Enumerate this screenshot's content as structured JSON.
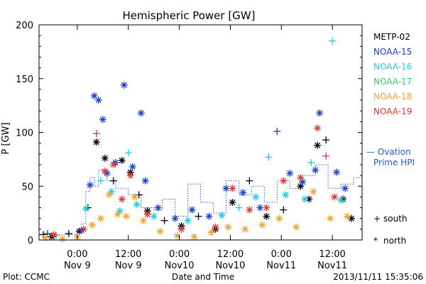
{
  "chart_data": {
    "type": "scatter",
    "title": "Hemispheric Power [GW]",
    "ylabel": "P [GW]",
    "xlabel": "Date and Time",
    "ylim": [
      0,
      200
    ],
    "yticks": [
      0,
      50,
      100,
      150,
      200
    ],
    "xlim": [
      "2013-11-08 15:00",
      "2013-11-11 19:00"
    ],
    "xticks": [
      {
        "time": "2013-11-09 00:00",
        "line1": "0:00",
        "line2": "Nov 9"
      },
      {
        "time": "2013-11-09 12:00",
        "line1": "12:00",
        "line2": "Nov 9"
      },
      {
        "time": "2013-11-10 00:00",
        "line1": "0:00",
        "line2": "Nov10"
      },
      {
        "time": "2013-11-10 12:00",
        "line1": "12:00",
        "line2": "Nov10"
      },
      {
        "time": "2013-11-11 00:00",
        "line1": "0:00",
        "line2": "Nov11"
      },
      {
        "time": "2013-11-11 12:00",
        "line1": "12:00",
        "line2": "Nov11"
      }
    ],
    "series": [
      {
        "name": "METP-02",
        "color": "#000000",
        "points": [
          {
            "t": "2013-11-08 16:00",
            "v": 5,
            "m": "south"
          },
          {
            "t": "2013-11-08 18:00",
            "v": 3,
            "m": "north"
          },
          {
            "t": "2013-11-08 22:00",
            "v": 6,
            "m": "south"
          },
          {
            "t": "2013-11-09 00:30",
            "v": 8,
            "m": "north"
          },
          {
            "t": "2013-11-09 02:30",
            "v": 30,
            "m": "south"
          },
          {
            "t": "2013-11-09 04:30",
            "v": 91,
            "m": "north"
          },
          {
            "t": "2013-11-09 06:30",
            "v": 76,
            "m": "north"
          },
          {
            "t": "2013-11-09 08:30",
            "v": 55,
            "m": "south"
          },
          {
            "t": "2013-11-09 10:30",
            "v": 74,
            "m": "north"
          },
          {
            "t": "2013-11-09 12:30",
            "v": 63,
            "m": "north"
          },
          {
            "t": "2013-11-09 14:30",
            "v": 42,
            "m": "south"
          },
          {
            "t": "2013-11-09 16:30",
            "v": 27,
            "m": "north"
          },
          {
            "t": "2013-11-09 20:30",
            "v": 18,
            "m": "south"
          },
          {
            "t": "2013-11-10 00:30",
            "v": 13,
            "m": "north"
          },
          {
            "t": "2013-11-10 04:30",
            "v": 22,
            "m": "south"
          },
          {
            "t": "2013-11-10 08:30",
            "v": 10,
            "m": "north"
          },
          {
            "t": "2013-11-10 12:30",
            "v": 35,
            "m": "north"
          },
          {
            "t": "2013-11-10 16:30",
            "v": 55,
            "m": "south"
          },
          {
            "t": "2013-11-10 20:30",
            "v": 22,
            "m": "north"
          },
          {
            "t": "2013-11-11 00:30",
            "v": 28,
            "m": "south"
          },
          {
            "t": "2013-11-11 04:30",
            "v": 50,
            "m": "north"
          },
          {
            "t": "2013-11-11 06:30",
            "v": 38,
            "m": "north"
          },
          {
            "t": "2013-11-11 08:30",
            "v": 88,
            "m": "north"
          },
          {
            "t": "2013-11-11 10:30",
            "v": 93,
            "m": "south"
          },
          {
            "t": "2013-11-11 14:30",
            "v": 38,
            "m": "north"
          },
          {
            "t": "2013-11-11 16:30",
            "v": 20,
            "m": "north"
          }
        ]
      },
      {
        "name": "NOAA-15",
        "color": "#1c3fc4",
        "points": [
          {
            "t": "2013-11-08 17:00",
            "v": 6,
            "m": "south"
          },
          {
            "t": "2013-11-09 01:00",
            "v": 9,
            "m": "north"
          },
          {
            "t": "2013-11-09 03:00",
            "v": 51,
            "m": "north"
          },
          {
            "t": "2013-11-09 04:00",
            "v": 134,
            "m": "north"
          },
          {
            "t": "2013-11-09 05:00",
            "v": 130,
            "m": "north"
          },
          {
            "t": "2013-11-09 06:00",
            "v": 112,
            "m": "north"
          },
          {
            "t": "2013-11-09 07:00",
            "v": 62,
            "m": "north"
          },
          {
            "t": "2013-11-09 09:00",
            "v": 72,
            "m": "north"
          },
          {
            "t": "2013-11-09 11:00",
            "v": 144,
            "m": "north"
          },
          {
            "t": "2013-11-09 13:00",
            "v": 68,
            "m": "north"
          },
          {
            "t": "2013-11-09 15:00",
            "v": 118,
            "m": "north"
          },
          {
            "t": "2013-11-09 16:00",
            "v": 55,
            "m": "north"
          },
          {
            "t": "2013-11-09 19:00",
            "v": 30,
            "m": "north"
          },
          {
            "t": "2013-11-09 23:00",
            "v": 20,
            "m": "north"
          },
          {
            "t": "2013-11-10 03:00",
            "v": 28,
            "m": "north"
          },
          {
            "t": "2013-11-10 07:00",
            "v": 22,
            "m": "north"
          },
          {
            "t": "2013-11-10 11:00",
            "v": 48,
            "m": "north"
          },
          {
            "t": "2013-11-10 15:00",
            "v": 44,
            "m": "north"
          },
          {
            "t": "2013-11-10 19:00",
            "v": 30,
            "m": "north"
          },
          {
            "t": "2013-11-10 23:00",
            "v": 101,
            "m": "south"
          },
          {
            "t": "2013-11-11 02:00",
            "v": 62,
            "m": "north"
          },
          {
            "t": "2013-11-11 05:00",
            "v": 54,
            "m": "north"
          },
          {
            "t": "2013-11-11 08:00",
            "v": 65,
            "m": "north"
          },
          {
            "t": "2013-11-11 09:00",
            "v": 118,
            "m": "north"
          },
          {
            "t": "2013-11-11 13:00",
            "v": 63,
            "m": "north"
          },
          {
            "t": "2013-11-11 15:00",
            "v": 48,
            "m": "north"
          }
        ]
      },
      {
        "name": "NOAA-16",
        "color": "#29c8e0",
        "points": [
          {
            "t": "2013-11-08 19:00",
            "v": 4,
            "m": "south"
          },
          {
            "t": "2013-11-09 02:00",
            "v": 29,
            "m": "north"
          },
          {
            "t": "2013-11-09 05:30",
            "v": 55,
            "m": "south"
          },
          {
            "t": "2013-11-09 08:00",
            "v": 45,
            "m": "north"
          },
          {
            "t": "2013-11-09 10:00",
            "v": 27,
            "m": "north"
          },
          {
            "t": "2013-11-09 12:00",
            "v": 81,
            "m": "south"
          },
          {
            "t": "2013-11-09 14:00",
            "v": 33,
            "m": "north"
          },
          {
            "t": "2013-11-09 18:00",
            "v": 22,
            "m": "north"
          },
          {
            "t": "2013-11-10 02:00",
            "v": 18,
            "m": "north"
          },
          {
            "t": "2013-11-10 10:00",
            "v": 23,
            "m": "north"
          },
          {
            "t": "2013-11-10 14:00",
            "v": 30,
            "m": "south"
          },
          {
            "t": "2013-11-10 18:00",
            "v": 40,
            "m": "north"
          },
          {
            "t": "2013-11-10 21:00",
            "v": 77,
            "m": "south"
          },
          {
            "t": "2013-11-11 01:00",
            "v": 42,
            "m": "north"
          },
          {
            "t": "2013-11-11 05:30",
            "v": 38,
            "m": "north"
          },
          {
            "t": "2013-11-11 07:00",
            "v": 72,
            "m": "south"
          },
          {
            "t": "2013-11-11 12:00",
            "v": 185,
            "m": "south"
          },
          {
            "t": "2013-11-11 14:00",
            "v": 37,
            "m": "north"
          }
        ]
      },
      {
        "name": "NOAA-17",
        "color": "#2ecc71",
        "points": []
      },
      {
        "name": "NOAA-18",
        "color": "#f5a22a",
        "points": [
          {
            "t": "2013-11-08 16:30",
            "v": 2,
            "m": "north"
          },
          {
            "t": "2013-11-08 20:30",
            "v": 1,
            "m": "north"
          },
          {
            "t": "2013-11-09 00:00",
            "v": 3,
            "m": "north"
          },
          {
            "t": "2013-11-09 03:30",
            "v": 14,
            "m": "north"
          },
          {
            "t": "2013-11-09 05:30",
            "v": 20,
            "m": "north"
          },
          {
            "t": "2013-11-09 07:30",
            "v": 42,
            "m": "north"
          },
          {
            "t": "2013-11-09 09:30",
            "v": 24,
            "m": "north"
          },
          {
            "t": "2013-11-09 11:30",
            "v": 22,
            "m": "north"
          },
          {
            "t": "2013-11-09 13:30",
            "v": 40,
            "m": "north"
          },
          {
            "t": "2013-11-09 15:30",
            "v": 18,
            "m": "north"
          },
          {
            "t": "2013-11-09 19:30",
            "v": 8,
            "m": "north"
          },
          {
            "t": "2013-11-09 23:30",
            "v": 4,
            "m": "north"
          },
          {
            "t": "2013-11-10 03:30",
            "v": 3,
            "m": "north"
          },
          {
            "t": "2013-11-10 07:30",
            "v": 7,
            "m": "north"
          },
          {
            "t": "2013-11-10 11:30",
            "v": 12,
            "m": "north"
          },
          {
            "t": "2013-11-10 15:30",
            "v": 10,
            "m": "north"
          },
          {
            "t": "2013-11-10 19:30",
            "v": 14,
            "m": "north"
          },
          {
            "t": "2013-11-10 23:30",
            "v": 20,
            "m": "north"
          },
          {
            "t": "2013-11-11 03:30",
            "v": 12,
            "m": "north"
          },
          {
            "t": "2013-11-11 07:30",
            "v": 45,
            "m": "north"
          },
          {
            "t": "2013-11-11 11:30",
            "v": 20,
            "m": "north"
          },
          {
            "t": "2013-11-11 15:30",
            "v": 22,
            "m": "north"
          }
        ]
      },
      {
        "name": "NOAA-19",
        "color": "#e3342f",
        "points": [
          {
            "t": "2013-11-08 18:30",
            "v": 5,
            "m": "north"
          },
          {
            "t": "2013-11-09 01:30",
            "v": 10,
            "m": "north"
          },
          {
            "t": "2013-11-09 04:30",
            "v": 99,
            "m": "south"
          },
          {
            "t": "2013-11-09 06:30",
            "v": 64,
            "m": "north"
          },
          {
            "t": "2013-11-09 08:30",
            "v": 70,
            "m": "north"
          },
          {
            "t": "2013-11-09 10:30",
            "v": 38,
            "m": "north"
          },
          {
            "t": "2013-11-09 12:30",
            "v": 60,
            "m": "north"
          },
          {
            "t": "2013-11-09 16:30",
            "v": 24,
            "m": "north"
          },
          {
            "t": "2013-11-10 00:30",
            "v": 10,
            "m": "north"
          },
          {
            "t": "2013-11-10 08:30",
            "v": 12,
            "m": "north"
          },
          {
            "t": "2013-11-10 12:30",
            "v": 48,
            "m": "north"
          },
          {
            "t": "2013-11-10 16:30",
            "v": 28,
            "m": "north"
          },
          {
            "t": "2013-11-10 20:30",
            "v": 30,
            "m": "north"
          },
          {
            "t": "2013-11-11 00:30",
            "v": 55,
            "m": "north"
          },
          {
            "t": "2013-11-11 04:30",
            "v": 58,
            "m": "north"
          },
          {
            "t": "2013-11-11 08:30",
            "v": 104,
            "m": "north"
          },
          {
            "t": "2013-11-11 10:30",
            "v": 78,
            "m": "south"
          },
          {
            "t": "2013-11-11 12:30",
            "v": 40,
            "m": "north"
          }
        ]
      }
    ],
    "ovation": {
      "name": "— Ovation Prime HPI",
      "name_line1": "— Ovation",
      "name_line2": "Prime HPI",
      "color": "#1f5fc9",
      "style": "dotted step line",
      "points": [
        {
          "t": "2013-11-08 15:00",
          "v": 5
        },
        {
          "t": "2013-11-09 00:00",
          "v": 10
        },
        {
          "t": "2013-11-09 01:00",
          "v": 15
        },
        {
          "t": "2013-11-09 02:00",
          "v": 45
        },
        {
          "t": "2013-11-09 03:00",
          "v": 58
        },
        {
          "t": "2013-11-09 04:00",
          "v": 50
        },
        {
          "t": "2013-11-09 05:00",
          "v": 65
        },
        {
          "t": "2013-11-09 07:00",
          "v": 55
        },
        {
          "t": "2013-11-09 09:00",
          "v": 48
        },
        {
          "t": "2013-11-09 12:00",
          "v": 42
        },
        {
          "t": "2013-11-09 15:00",
          "v": 30
        },
        {
          "t": "2013-11-09 18:00",
          "v": 28
        },
        {
          "t": "2013-11-09 20:00",
          "v": 38
        },
        {
          "t": "2013-11-09 23:00",
          "v": 22
        },
        {
          "t": "2013-11-10 02:00",
          "v": 52
        },
        {
          "t": "2013-11-10 05:00",
          "v": 35
        },
        {
          "t": "2013-11-10 08:00",
          "v": 25
        },
        {
          "t": "2013-11-10 11:00",
          "v": 55
        },
        {
          "t": "2013-11-10 14:00",
          "v": 42
        },
        {
          "t": "2013-11-10 17:00",
          "v": 50
        },
        {
          "t": "2013-11-10 20:00",
          "v": 35
        },
        {
          "t": "2013-11-10 23:00",
          "v": 55
        },
        {
          "t": "2013-11-11 02:00",
          "v": 48
        },
        {
          "t": "2013-11-11 05:00",
          "v": 60
        },
        {
          "t": "2013-11-11 08:00",
          "v": 70
        },
        {
          "t": "2013-11-11 11:00",
          "v": 48
        },
        {
          "t": "2013-11-11 14:00",
          "v": 52
        },
        {
          "t": "2013-11-11 17:00",
          "v": 58
        },
        {
          "t": "2013-11-11 19:00",
          "v": 58
        }
      ]
    },
    "markers": {
      "south_symbol": "+",
      "south_label": "south",
      "north_symbol": "*",
      "north_label": "north"
    }
  },
  "footer": {
    "plot_source": "Plot: CCMC",
    "timestamp": "2013/11/11 15:35:06"
  }
}
